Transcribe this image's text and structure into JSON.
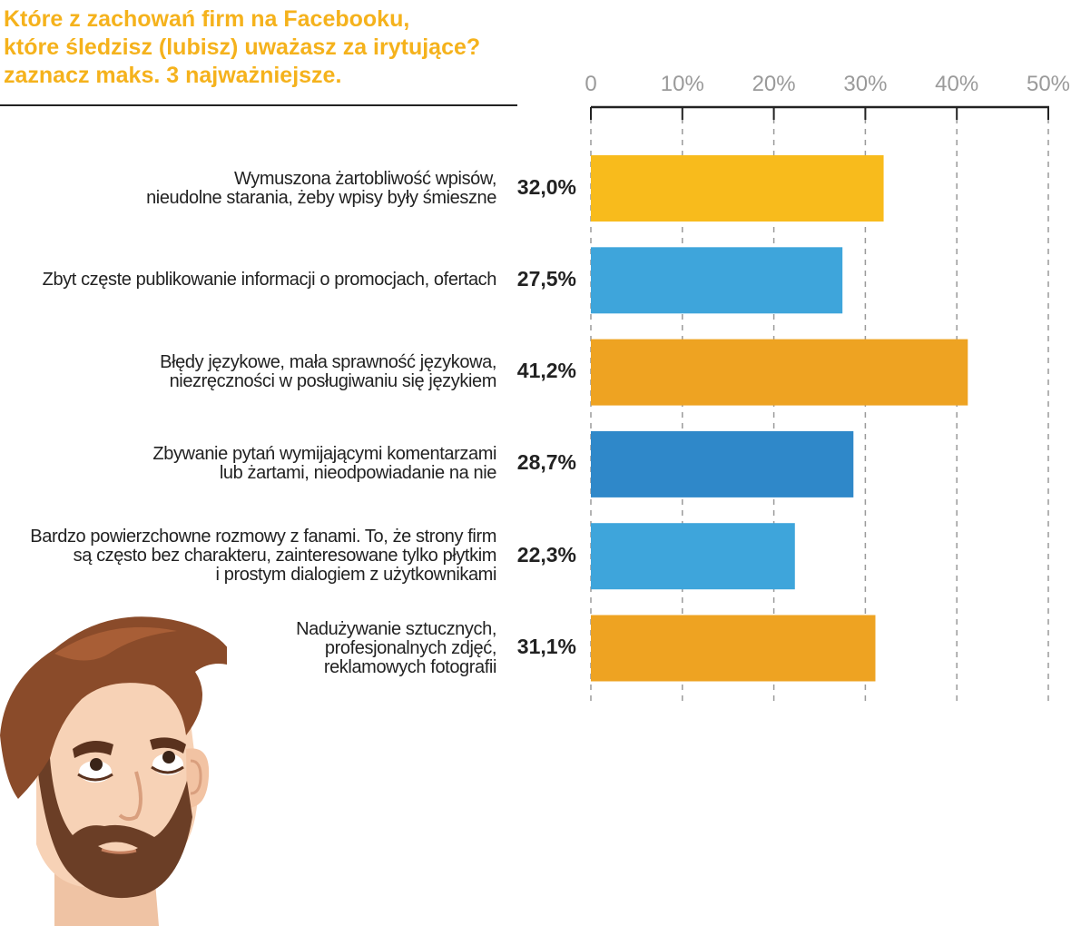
{
  "title": {
    "lines": [
      "Które z zachowań firm na Facebooku,",
      "które śledzisz (lubisz) uważasz za irytujące?",
      "zaznacz maks. 3 najważniejsze."
    ]
  },
  "colors": {
    "title": "#f5b21c",
    "yellow": "#f8bb1c",
    "orange": "#eea322",
    "light_blue": "#3ea5db",
    "dark_blue": "#2f88c9",
    "axis": "#222222",
    "grid": "#9a9a9a",
    "tick_text": "#9a9a9a"
  },
  "chart_data": {
    "type": "bar",
    "orientation": "horizontal",
    "title": "Które z zachowań firm na Facebooku, które śledzisz (lubisz) uważasz za irytujące? zaznacz maks. 3 najważniejsze.",
    "xlim": [
      0,
      50
    ],
    "ticks": [
      {
        "value": 0,
        "label": "0"
      },
      {
        "value": 10,
        "label": "10%"
      },
      {
        "value": 20,
        "label": "20%"
      },
      {
        "value": 30,
        "label": "30%"
      },
      {
        "value": 40,
        "label": "40%"
      },
      {
        "value": 50,
        "label": "50%"
      }
    ],
    "grid": true,
    "categories": [
      {
        "lines": [
          "Wymuszona żartobliwość wpisów,",
          "nieudolne starania, żeby wpisy były śmieszne"
        ],
        "value": 32.0,
        "value_label": "32,0%",
        "color": "yellow"
      },
      {
        "lines": [
          "Zbyt częste publikowanie informacji o promocjach, ofertach"
        ],
        "value": 27.5,
        "value_label": "27,5%",
        "color": "light_blue"
      },
      {
        "lines": [
          "Błędy językowe, mała sprawność językowa,",
          "niezręczności w posługiwaniu się językiem"
        ],
        "value": 41.2,
        "value_label": "41,2%",
        "color": "orange"
      },
      {
        "lines": [
          "Zbywanie pytań wymijającymi komentarzami",
          "lub żartami, nieodpowiadanie na nie"
        ],
        "value": 28.7,
        "value_label": "28,7%",
        "color": "dark_blue"
      },
      {
        "lines": [
          "Bardzo powierzchowne rozmowy z fanami. To, że strony firm",
          "są często bez charakteru, zainteresowane tylko płytkim",
          "i prostym dialogiem z użytkownikami"
        ],
        "value": 22.3,
        "value_label": "22,3%",
        "color": "light_blue"
      },
      {
        "lines": [
          "Nadużywanie sztucznych,",
          "profesjonalnych zdjęć,",
          "reklamowych fotografii"
        ],
        "value": 31.1,
        "value_label": "31,1%",
        "color": "orange"
      }
    ]
  },
  "illustration": {
    "icon": "bearded-man-rolling-eyes-icon"
  }
}
